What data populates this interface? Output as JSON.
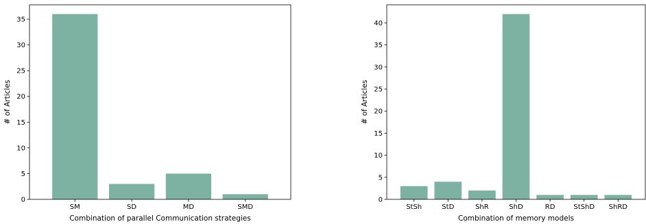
{
  "chart_data": [
    {
      "type": "bar",
      "categories": [
        "SM",
        "SD",
        "MD",
        "SMD"
      ],
      "values": [
        36,
        3,
        5,
        1
      ],
      "xlabel": "Combination of parallel Communication strategies",
      "ylabel": "# of Articles",
      "ylim": [
        0,
        37.8
      ],
      "yticks": [
        0,
        5,
        10,
        15,
        20,
        25,
        30,
        35
      ],
      "bar_color": "#7db2a3",
      "grid": false
    },
    {
      "type": "bar",
      "categories": [
        "StSh",
        "StD",
        "ShR",
        "ShD",
        "RD",
        "StShD",
        "ShRD"
      ],
      "values": [
        3,
        4,
        2,
        42,
        1,
        1,
        1
      ],
      "xlabel": "Combination of memory models",
      "ylabel": "# of Articles",
      "ylim": [
        0,
        44.1
      ],
      "yticks": [
        0,
        5,
        10,
        15,
        20,
        25,
        30,
        35,
        40
      ],
      "bar_color": "#7db2a3",
      "grid": false
    }
  ]
}
